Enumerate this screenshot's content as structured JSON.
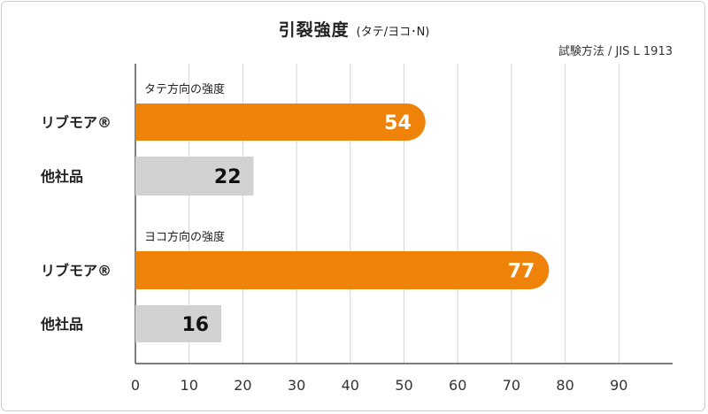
{
  "title": "引裂強度",
  "subtitle": "(タテ/ヨコ･N)",
  "method": "試験方法 / JIS L 1913",
  "colors": {
    "brand": "#ef8208",
    "competitor": "#d2d2d2",
    "grid": "#d6d6d6"
  },
  "chart_data": {
    "type": "bar",
    "orientation": "horizontal",
    "title": "引裂強度",
    "subtitle": "(タテ/ヨコ･N)",
    "note": "試験方法 / JIS L 1913",
    "xlim": [
      0,
      100
    ],
    "xticks": [
      0,
      10,
      20,
      30,
      40,
      50,
      60,
      70,
      80,
      90
    ],
    "grid": true,
    "groups": [
      {
        "label": "タテ方向の強度",
        "bars": [
          {
            "category": "リブモア®",
            "value": 54,
            "color": "#ef8208",
            "label_color": "#ffffff"
          },
          {
            "category": "他社品",
            "value": 22,
            "color": "#d2d2d2",
            "label_color": "#111111"
          }
        ]
      },
      {
        "label": "ヨコ方向の強度",
        "bars": [
          {
            "category": "リブモア®",
            "value": 77,
            "color": "#ef8208",
            "label_color": "#ffffff"
          },
          {
            "category": "他社品",
            "value": 16,
            "color": "#d2d2d2",
            "label_color": "#111111"
          }
        ]
      }
    ]
  }
}
